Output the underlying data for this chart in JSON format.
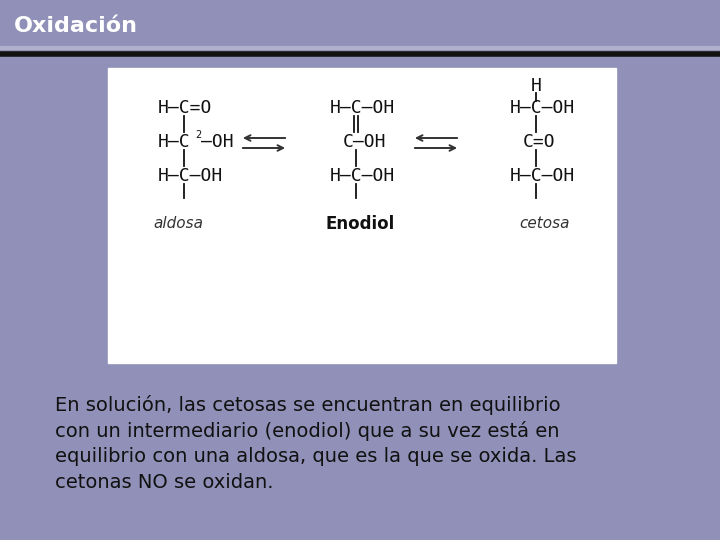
{
  "title": "Oxidación",
  "title_color": "#ffffff",
  "title_bg_color": "#7878a0",
  "slide_bg_color": "#9090b8",
  "box_bg_color": "#ffffff",
  "body_text_line1": "En solución, las cetosas se encuentran en equilibrio",
  "body_text_line2": "con un intermediario (enodiol) que a su vez está en",
  "body_text_line3": "equilibrio con una aldosa, que es la que se oxida. Las",
  "body_text_line4": "cetonas NO se oxidan.",
  "body_text_color": "#111111",
  "body_fontsize": 14,
  "title_fontsize": 16,
  "separator_color_light": "#aaaacc",
  "separator_color_dark": "#222222",
  "aldosa_label": "aldosa",
  "enodiol_label": "Enodiol",
  "cetosa_label": "cetosa",
  "arrow_color": "#333333",
  "struct_fontsize": 13,
  "label_fontsize": 11
}
